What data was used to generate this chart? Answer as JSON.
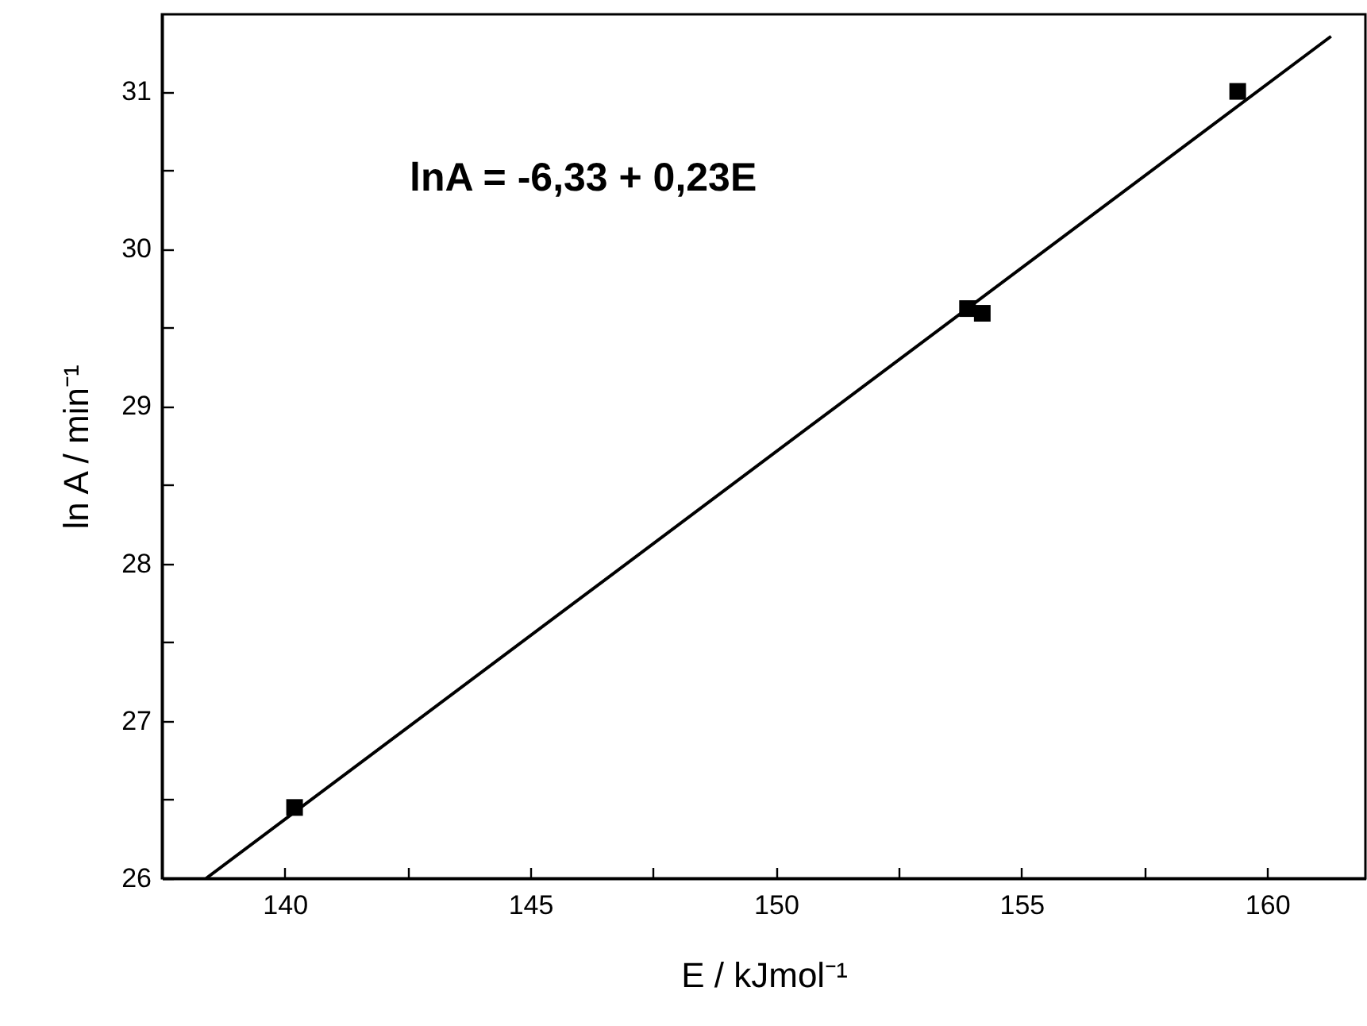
{
  "chart_data": {
    "type": "scatter",
    "xlabel": "E / kJmol⁻¹",
    "ylabel": "ln A / min⁻¹",
    "marker": "square",
    "grid": false,
    "xlim": [
      137.5,
      162
    ],
    "ylim": [
      26,
      31.49
    ],
    "xticks": [
      140,
      {
        "value": 142.5,
        "label": null
      },
      145,
      {
        "value": 147.5,
        "label": null
      },
      150,
      {
        "value": 152.5,
        "label": null
      },
      155,
      {
        "value": 157.5,
        "label": null
      },
      160
    ],
    "yticks": [
      26,
      {
        "value": 26.5,
        "label": null
      },
      27,
      {
        "value": 27.5,
        "label": null
      },
      28,
      {
        "value": 28.5,
        "label": null
      },
      29,
      {
        "value": 29.5,
        "label": null
      },
      30,
      {
        "value": 30.5,
        "label": null
      },
      31
    ],
    "annotations": [
      "lnA = -6,33 + 0,23E"
    ],
    "series": [
      {
        "color": "#000000",
        "x": [
          140.2,
          153.9,
          154.2,
          159.4
        ],
        "values": [
          26.45,
          29.62,
          29.59,
          31.0
        ]
      },
      {
        "type": "line",
        "color": "#000000",
        "x": [
          138.4,
          161.3
        ],
        "values": [
          26.0,
          31.35
        ],
        "marker": "none"
      }
    ]
  }
}
